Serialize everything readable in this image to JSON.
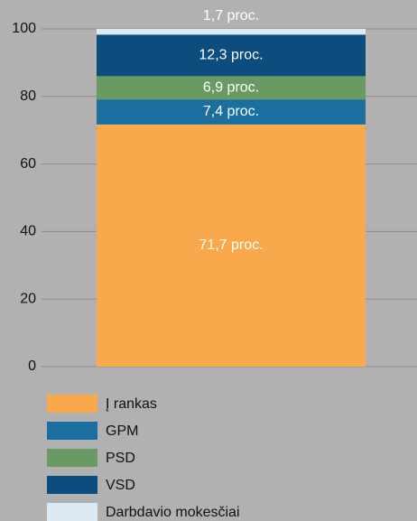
{
  "chart_data": {
    "type": "bar",
    "stacked": true,
    "categories": [
      null
    ],
    "series": [
      {
        "name": "Į rankas",
        "color": "#f9a94b",
        "values": [
          71.7
        ],
        "value_labels": [
          "71,7 proc."
        ]
      },
      {
        "name": "GPM",
        "color": "#1a6fa0",
        "values": [
          7.4
        ],
        "value_labels": [
          "7,4 proc."
        ]
      },
      {
        "name": "PSD",
        "color": "#6a9a64",
        "values": [
          6.9
        ],
        "value_labels": [
          "6,9 proc."
        ]
      },
      {
        "name": "VSD",
        "color": "#0d4d7d",
        "values": [
          12.3
        ],
        "value_labels": [
          "12,3 proc."
        ]
      },
      {
        "name": "Darbdavio mokesčiai",
        "color": "#dce9f3",
        "values": [
          1.7
        ],
        "value_labels": [
          "1,7 proc."
        ]
      }
    ],
    "ylim": [
      0,
      100
    ],
    "yticks": [
      0,
      20,
      40,
      60,
      80,
      100
    ],
    "grid": true,
    "legend": "bottom"
  }
}
